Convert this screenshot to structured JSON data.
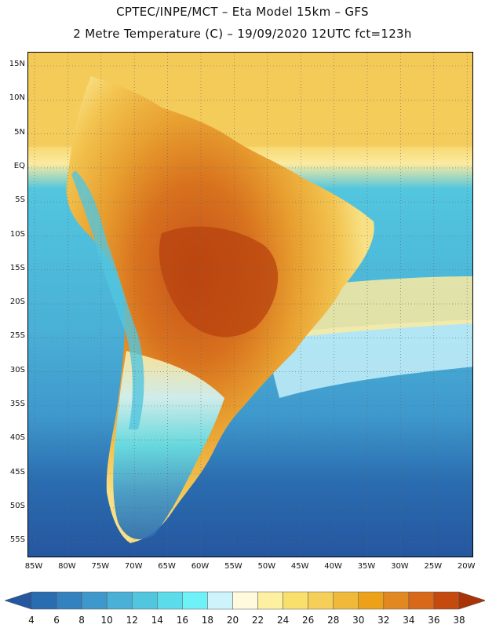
{
  "title_line1": "CPTEC/INPE/MCT –  Eta Model 15km – GFS",
  "title_line2": "2 Metre Temperature (C) – 19/09/2020 12UTC fct=123h",
  "lat_labels": [
    "15N",
    "10N",
    "5N",
    "EQ",
    "5S",
    "10S",
    "15S",
    "20S",
    "25S",
    "30S",
    "35S",
    "40S",
    "45S",
    "50S",
    "55S"
  ],
  "lon_labels": [
    "85W",
    "80W",
    "75W",
    "70W",
    "65W",
    "60W",
    "55W",
    "50W",
    "45W",
    "40W",
    "35W",
    "30W",
    "25W",
    "20W"
  ],
  "legend": {
    "ticks": [
      "4",
      "6",
      "8",
      "10",
      "12",
      "14",
      "16",
      "18",
      "20",
      "22",
      "24",
      "26",
      "28",
      "30",
      "32",
      "34",
      "36",
      "38"
    ],
    "colors": [
      "#2556a0",
      "#2a6cb0",
      "#3481c0",
      "#3e98cc",
      "#4ab0d6",
      "#52c6df",
      "#5cdceb",
      "#6ef2f8",
      "#cdf4fb",
      "#fff9de",
      "#fdf0a0",
      "#f9e06c",
      "#f5cf58",
      "#f0b93a",
      "#eda118",
      "#e28820",
      "#d8681a",
      "#c44a10",
      "#a83408"
    ]
  },
  "colors": {
    "ocean_deep": "#2d5fa6",
    "ocean_mid": "#3e98cc",
    "ocean_warm": "#52c6df",
    "land_hot": "#c85a18",
    "land_warm": "#e8a030",
    "land_mild": "#f5d060"
  }
}
